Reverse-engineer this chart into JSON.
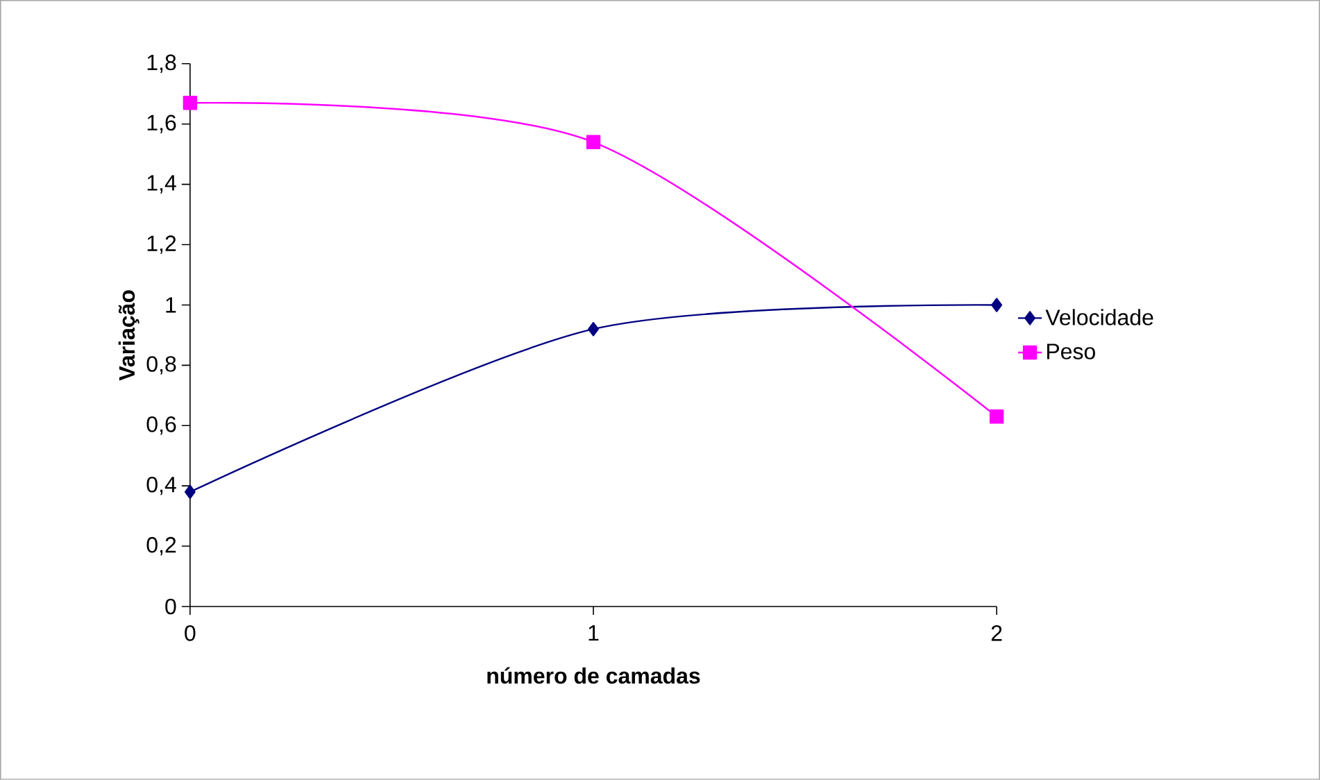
{
  "chart_data": {
    "type": "line",
    "xlabel": "número de camadas",
    "ylabel": "Variação",
    "categories": [
      "0",
      "1",
      "2"
    ],
    "series": [
      {
        "name": "Velocidade",
        "color": "#000080",
        "marker": "diamond",
        "values": [
          0.38,
          0.92,
          1.0
        ]
      },
      {
        "name": "Peso",
        "color": "#ff00ff",
        "marker": "square",
        "values": [
          1.67,
          1.54,
          0.63
        ]
      }
    ],
    "ylim": [
      0,
      1.8
    ],
    "yticks": [
      0,
      {
        "value": 0.2,
        "label": "0,2"
      },
      {
        "value": 0.4,
        "label": "0,4"
      },
      {
        "value": 0.6,
        "label": "0,6"
      },
      {
        "value": 0.8,
        "label": "0,8"
      },
      1,
      {
        "value": 1.2,
        "label": "1,2"
      },
      {
        "value": 1.4,
        "label": "1,4"
      },
      {
        "value": 1.6,
        "label": "1,6"
      },
      {
        "value": 1.8,
        "label": "1,8"
      }
    ],
    "legend": "right",
    "grid": false,
    "line_style": "solid"
  }
}
